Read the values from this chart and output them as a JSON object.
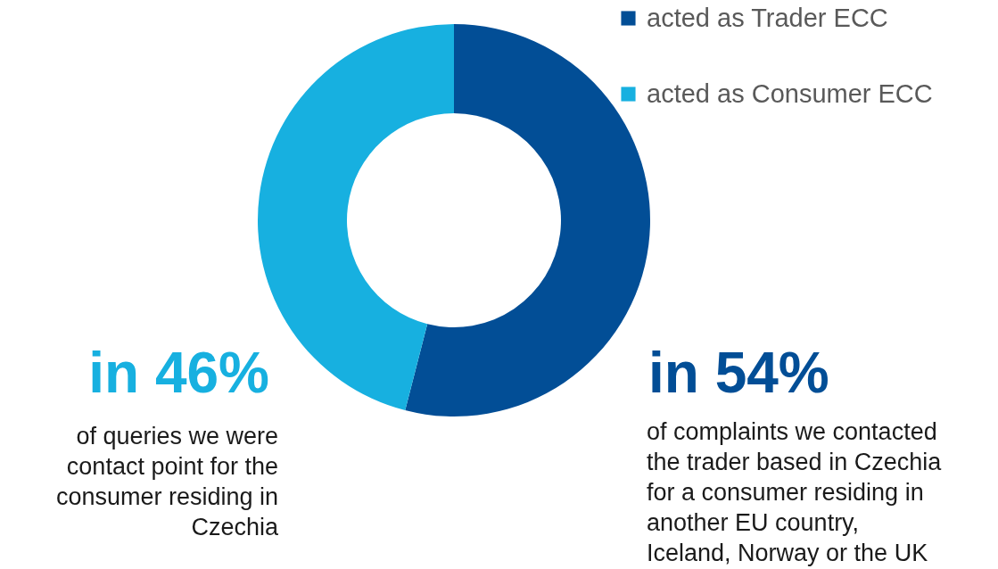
{
  "chart_data": {
    "type": "donut",
    "categories": [
      "acted as Trader ECC",
      "acted as Consumer ECC"
    ],
    "values": [
      54,
      46
    ],
    "colors": [
      "#024e96",
      "#17b0e0"
    ],
    "value_labels": [
      "in 54%",
      "in 46%"
    ],
    "annotations": [
      "of queries we were contact point for the consumer residing in Czechia",
      "of complaints we contacted the trader based in Czechia for a consumer residing in another EU country, Iceland, Norway or the UK"
    ],
    "legend": "top right"
  }
}
